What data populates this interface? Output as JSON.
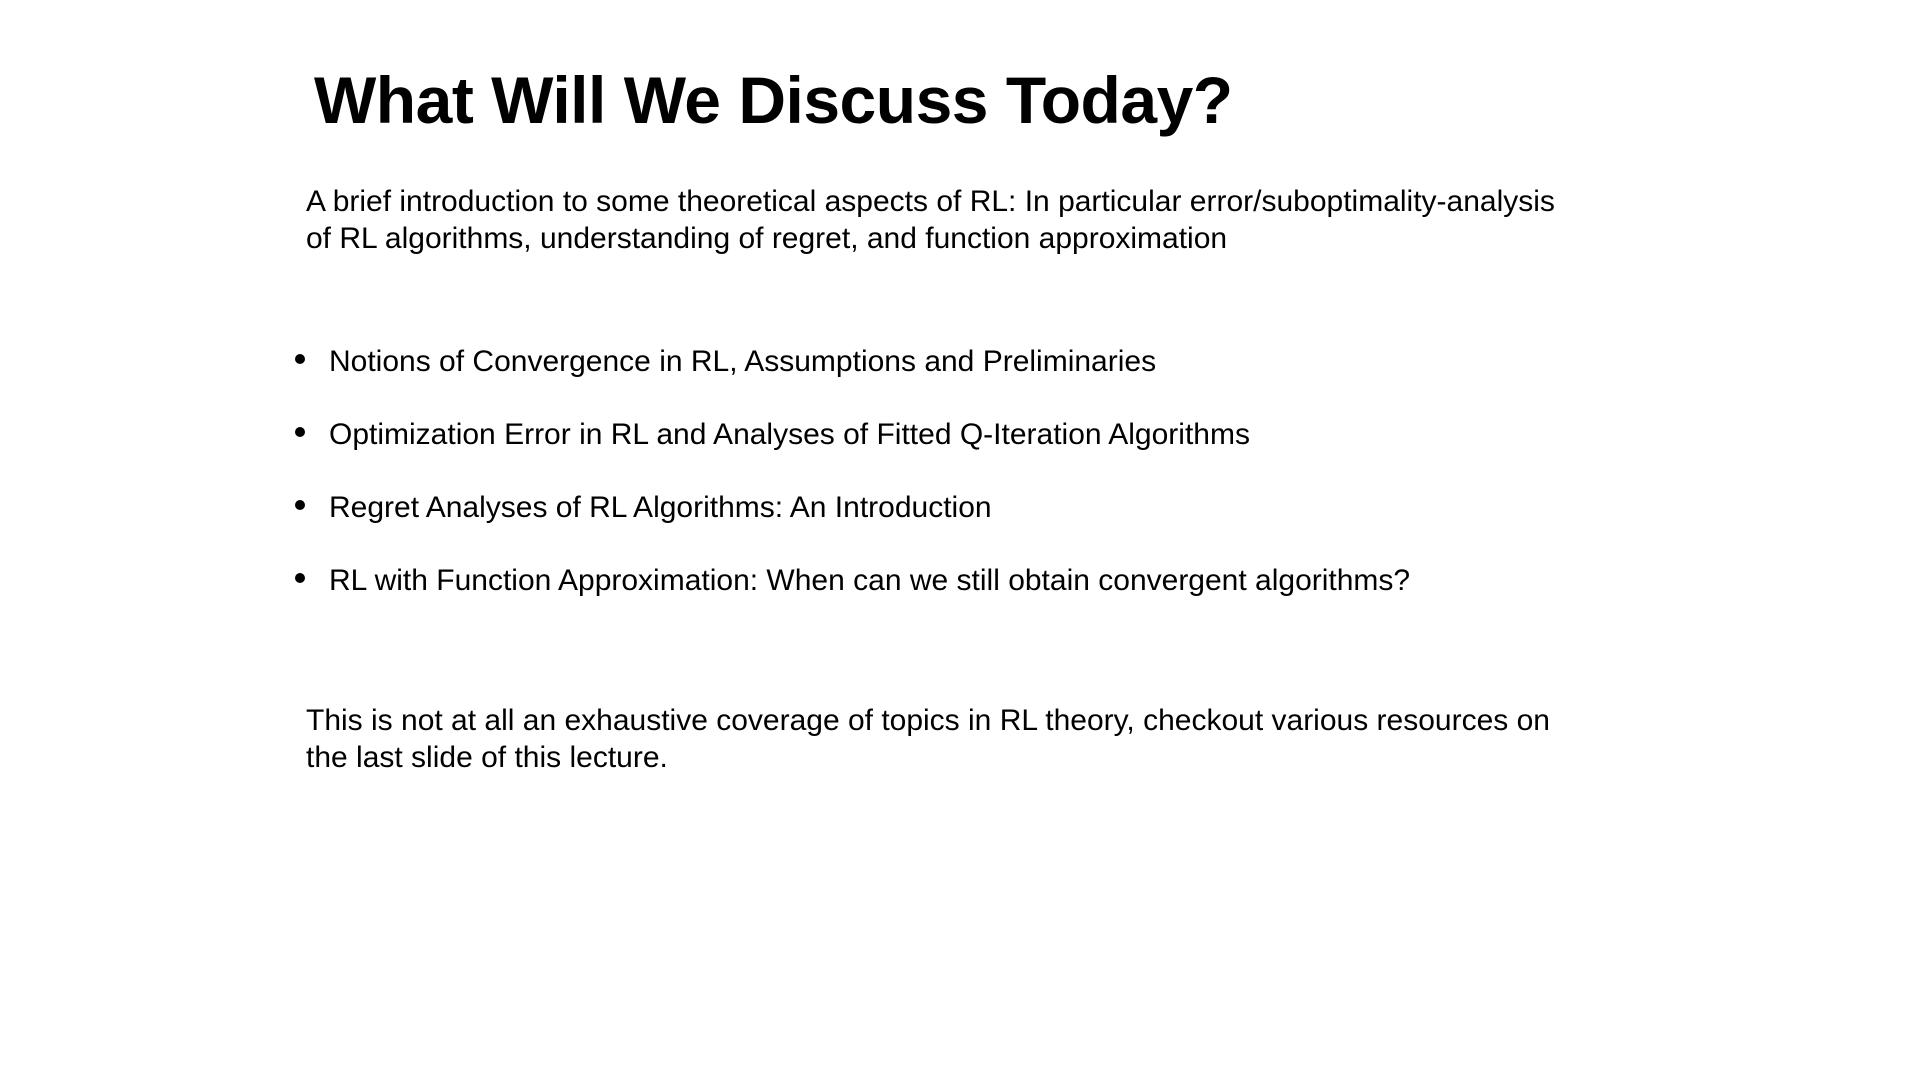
{
  "slide": {
    "title": "What Will We Discuss Today?",
    "intro": "A brief introduction to some theoretical aspects of RL: In particular error/suboptimality-analysis of RL algorithms, understanding of regret, and function approximation",
    "bullets": [
      "Notions of Convergence in RL, Assumptions and Preliminaries",
      "Optimization Error in RL and Analyses of Fitted Q-Iteration Algorithms",
      "Regret Analyses of RL Algorithms: An Introduction",
      "RL with Function Approximation: When can we still obtain convergent algorithms?"
    ],
    "note": "This is not at all an exhaustive coverage of topics in RL theory, checkout various resources on the last slide of this lecture."
  }
}
